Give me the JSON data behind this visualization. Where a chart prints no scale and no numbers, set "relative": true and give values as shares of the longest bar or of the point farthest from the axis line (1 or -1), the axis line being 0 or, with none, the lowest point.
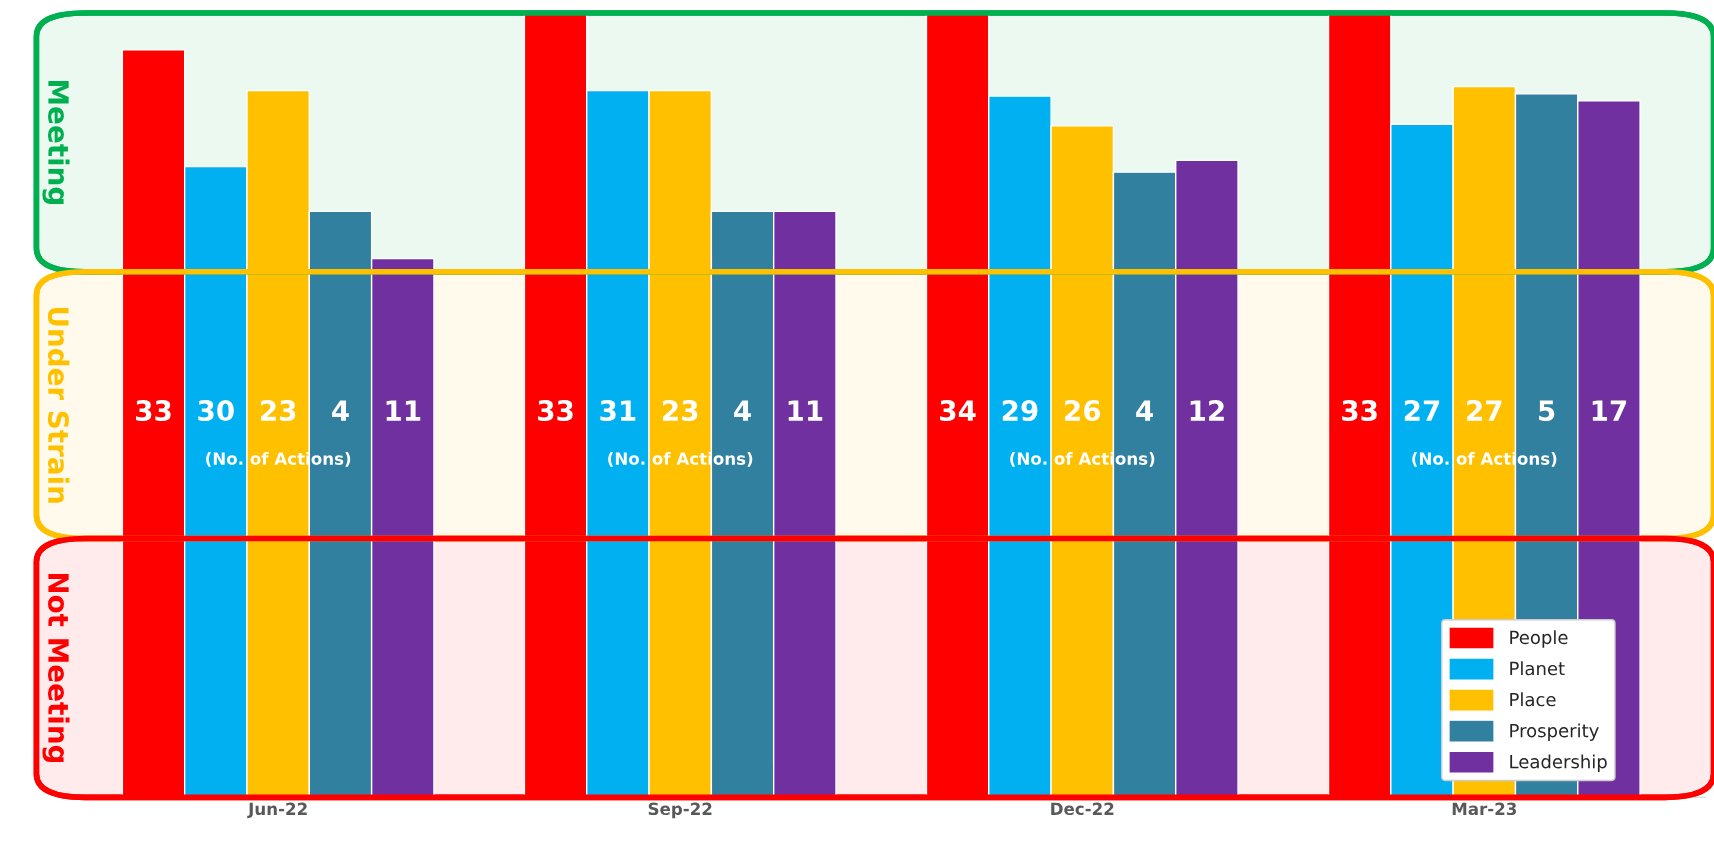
{
  "chart_data": {
    "type": "bar",
    "relative": true,
    "categories": [
      "Jun-22",
      "Sep-22",
      "Dec-22",
      "Mar-23"
    ],
    "series": [
      {
        "name": "People",
        "color": "#ff0000",
        "values": [
          0.953,
          1,
          1,
          1
        ]
      },
      {
        "name": "Planet",
        "color": "#00b0f0",
        "values": [
          0.804,
          0.901,
          0.894,
          0.858
        ]
      },
      {
        "name": "Place",
        "color": "#ffc000",
        "values": [
          0.901,
          0.901,
          0.856,
          0.906
        ]
      },
      {
        "name": "Prosperity",
        "color": "#31809f",
        "values": [
          0.747,
          0.747,
          0.797,
          0.897
        ]
      },
      {
        "name": "Leadership",
        "color": "#7030a0",
        "values": [
          0.687,
          0.747,
          0.812,
          0.888
        ]
      }
    ],
    "bands": [
      {
        "axis": "y",
        "from": 0.67,
        "to": 1,
        "label": "Meeting",
        "color": "#00b050"
      },
      {
        "axis": "y",
        "from": 0.33,
        "to": 0.67,
        "label": "Under Strain",
        "color": "#ffc000"
      },
      {
        "axis": "y",
        "from": 0,
        "to": 0.33,
        "label": "Not Meeting",
        "color": "#ff0000"
      }
    ],
    "annotations": [
      "33",
      "30",
      "23",
      "4",
      "11",
      "(No. of Actions)",
      "33",
      "31",
      "23",
      "4",
      "11",
      "(No. of Actions)",
      "34",
      "29",
      "26",
      "4",
      "12",
      "(No. of Actions)",
      "33",
      "27",
      "27",
      "5",
      "17",
      "(No. of Actions)"
    ],
    "legend": "bottom right",
    "grid": false
  }
}
